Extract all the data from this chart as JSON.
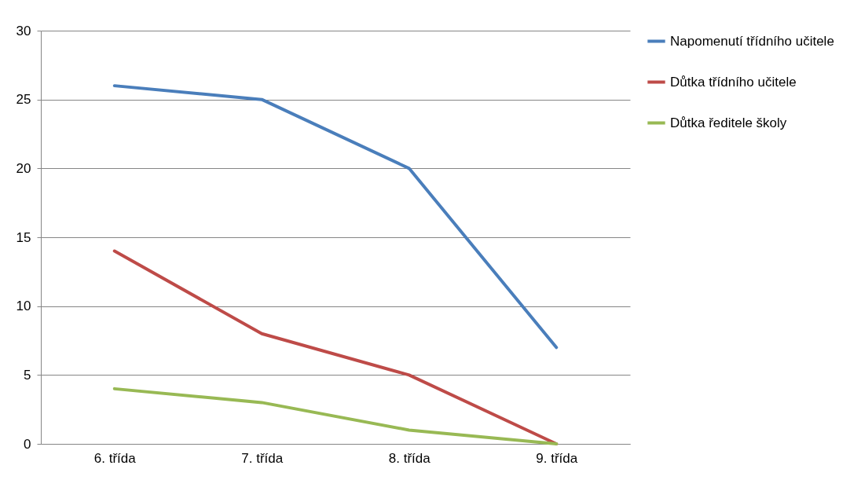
{
  "chart_data": {
    "type": "line",
    "categories": [
      "6. třída",
      "7. třída",
      "8. třída",
      "9. třída"
    ],
    "series": [
      {
        "name": "Napomenutí třídního učitele",
        "color": "#4a7ebb",
        "values": [
          26,
          25,
          20,
          7
        ]
      },
      {
        "name": "Důtka třídního učitele",
        "color": "#be4b48",
        "values": [
          14,
          8,
          5,
          0
        ]
      },
      {
        "name": "Důtka ředitele školy",
        "color": "#98b954",
        "values": [
          4,
          3,
          1,
          0
        ]
      }
    ],
    "ylim": [
      0,
      30
    ],
    "yticks": [
      0,
      5,
      10,
      15,
      20,
      25,
      30
    ],
    "grid": "y",
    "legend": "right"
  }
}
